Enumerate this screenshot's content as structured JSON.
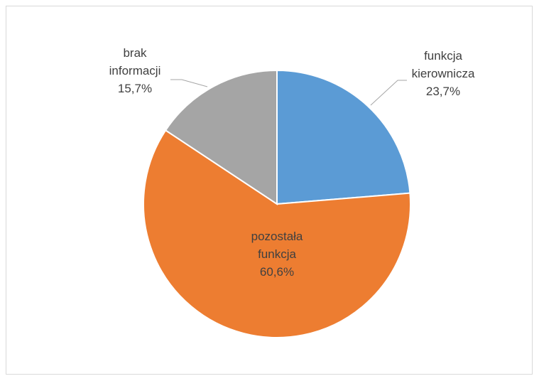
{
  "chart_data": {
    "type": "pie",
    "categories": [
      "funkcja kierownicza",
      "pozostała funkcja",
      "brak informacji"
    ],
    "values": [
      23.7,
      60.6,
      15.7
    ],
    "value_labels": [
      "23,7%",
      "60,6%",
      "15,7%"
    ],
    "colors": [
      "#5b9bd5",
      "#ed7d31",
      "#a5a5a5"
    ]
  }
}
